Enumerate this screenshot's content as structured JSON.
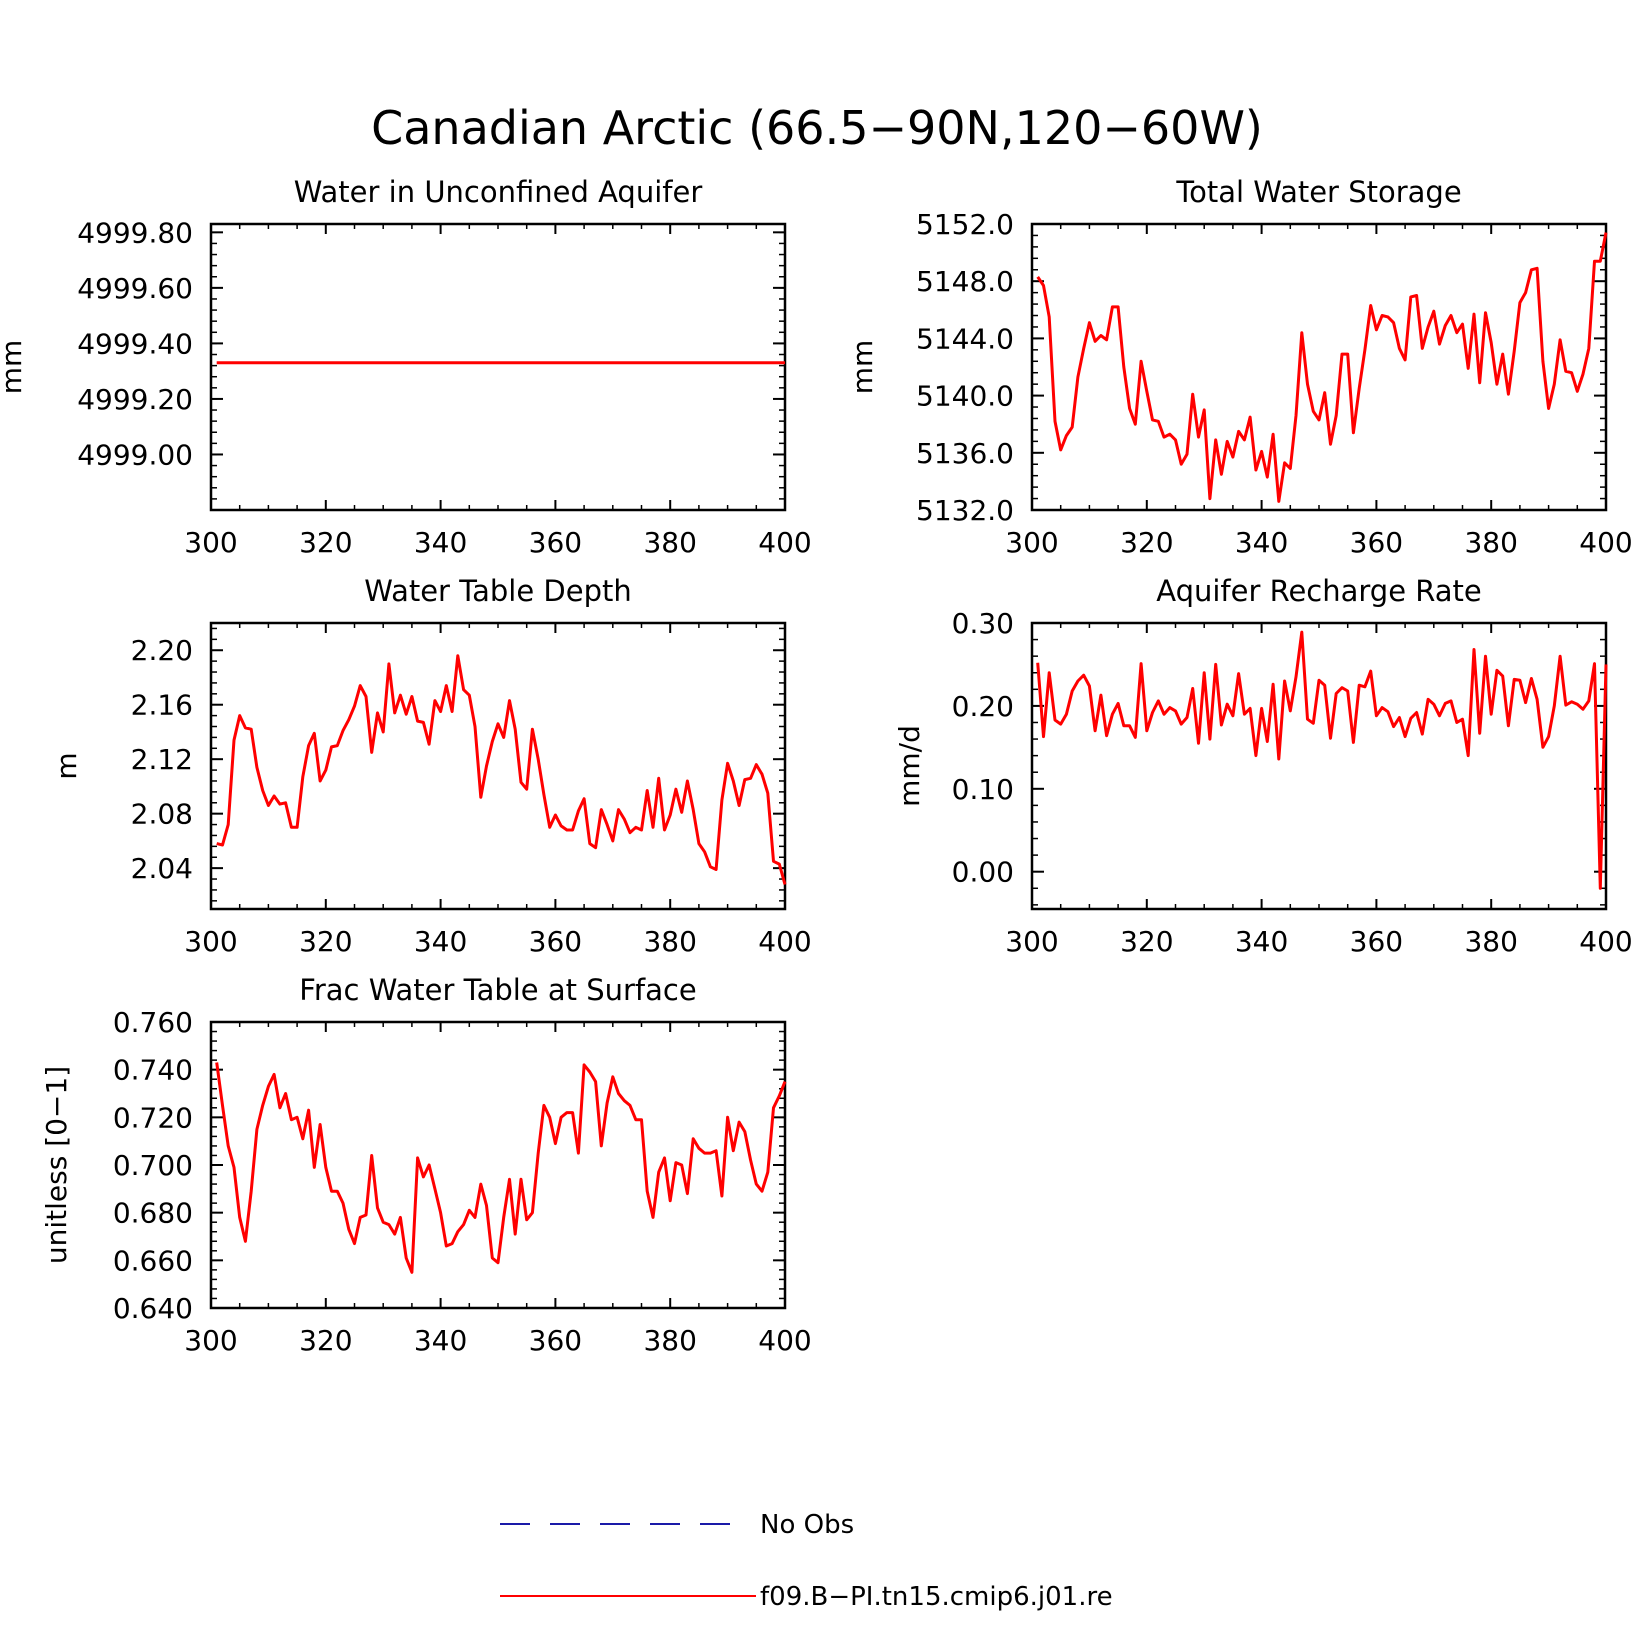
{
  "figure": {
    "title": "Canadian Arctic (66.5−90N,120−60W)"
  },
  "legend": {
    "items": [
      {
        "label": "No Obs",
        "color": "#1a1aa8",
        "dashed": true
      },
      {
        "label": "f09.B−PI.tn15.cmip6.j01.re",
        "color": "#ff0000",
        "dashed": false
      }
    ]
  },
  "colors": {
    "series": "#ff0000",
    "axis": "#000000"
  },
  "chart_data": [
    {
      "type": "line",
      "title": "Water in Unconfined Aquifer",
      "ylabel": "mm",
      "xlim": [
        300,
        400
      ],
      "ylim": [
        4998.8,
        4999.83
      ],
      "xticks": [
        300,
        320,
        340,
        360,
        380,
        400
      ],
      "xtick_labels": [
        "300",
        "320",
        "340",
        "360",
        "380",
        "400"
      ],
      "yticks": [
        4999.0,
        4999.2,
        4999.4,
        4999.6,
        4999.8
      ],
      "ytick_labels": [
        "4999.00",
        "4999.20",
        "4999.40",
        "4999.60",
        "4999.80"
      ],
      "x_start": 301,
      "series": [
        {
          "values": [
            4999.33,
            4999.33,
            4999.33,
            4999.33,
            4999.33,
            4999.33,
            4999.33,
            4999.33,
            4999.33,
            4999.33,
            4999.33
          ]
        }
      ]
    },
    {
      "type": "line",
      "title": "Total Water Storage",
      "ylabel": "mm",
      "xlim": [
        300,
        400
      ],
      "ylim": [
        5132.0,
        5152.0
      ],
      "xticks": [
        300,
        320,
        340,
        360,
        380,
        400
      ],
      "xtick_labels": [
        "300",
        "320",
        "340",
        "360",
        "380",
        "400"
      ],
      "yticks": [
        5132.0,
        5136.0,
        5140.0,
        5144.0,
        5148.0,
        5152.0
      ],
      "ytick_labels": [
        "5132.0",
        "5136.0",
        "5140.0",
        "5144.0",
        "5148.0",
        "5152.0"
      ],
      "x_start": 301,
      "series": [
        {
          "values": [
            5148.3,
            5147.7,
            5145.5,
            5138.2,
            5136.2,
            5137.2,
            5137.8,
            5141.3,
            5143.3,
            5145.1,
            5143.8,
            5144.2,
            5143.9,
            5146.2,
            5146.2,
            5142.0,
            5139.1,
            5138.0,
            5142.4,
            5140.3,
            5138.3,
            5138.2,
            5137.1,
            5137.3,
            5136.9,
            5135.2,
            5135.9,
            5140.1,
            5137.1,
            5139.0,
            5132.8,
            5136.9,
            5134.5,
            5136.8,
            5135.7,
            5137.5,
            5136.9,
            5138.5,
            5134.8,
            5136.1,
            5134.3,
            5137.3,
            5132.6,
            5135.3,
            5134.9,
            5138.6,
            5144.4,
            5140.8,
            5138.9,
            5138.3,
            5140.2,
            5136.6,
            5138.6,
            5142.9,
            5142.9,
            5137.4,
            5140.5,
            5143.2,
            5146.3,
            5144.6,
            5145.6,
            5145.5,
            5145.1,
            5143.3,
            5142.5,
            5146.9,
            5147.0,
            5143.3,
            5144.8,
            5145.9,
            5143.6,
            5144.9,
            5145.6,
            5144.4,
            5145.0,
            5141.9,
            5145.7,
            5140.9,
            5145.8,
            5143.7,
            5140.8,
            5142.9,
            5140.1,
            5143.1,
            5146.5,
            5147.2,
            5148.8,
            5148.9,
            5142.4,
            5139.1,
            5140.8,
            5143.9,
            5141.7,
            5141.6,
            5140.3,
            5141.5,
            5143.3,
            5149.4,
            5149.4,
            5151.4
          ]
        }
      ]
    },
    {
      "type": "line",
      "title": "Water Table Depth",
      "ylabel": "m",
      "xlim": [
        300,
        400
      ],
      "ylim": [
        2.01,
        2.22
      ],
      "xticks": [
        300,
        320,
        340,
        360,
        380,
        400
      ],
      "xtick_labels": [
        "300",
        "320",
        "340",
        "360",
        "380",
        "400"
      ],
      "yticks": [
        2.04,
        2.08,
        2.12,
        2.16,
        2.2
      ],
      "ytick_labels": [
        "2.04",
        "2.08",
        "2.12",
        "2.16",
        "2.20"
      ],
      "x_start": 301,
      "series": [
        {
          "values": [
            2.058,
            2.057,
            2.072,
            2.134,
            2.152,
            2.143,
            2.142,
            2.114,
            2.097,
            2.086,
            2.093,
            2.087,
            2.088,
            2.07,
            2.07,
            2.107,
            2.13,
            2.139,
            2.104,
            2.112,
            2.129,
            2.13,
            2.141,
            2.149,
            2.159,
            2.174,
            2.166,
            2.125,
            2.154,
            2.14,
            2.19,
            2.154,
            2.167,
            2.153,
            2.166,
            2.148,
            2.147,
            2.131,
            2.163,
            2.155,
            2.174,
            2.155,
            2.196,
            2.171,
            2.167,
            2.144,
            2.092,
            2.115,
            2.133,
            2.146,
            2.136,
            2.163,
            2.142,
            2.103,
            2.098,
            2.142,
            2.12,
            2.094,
            2.07,
            2.079,
            2.071,
            2.068,
            2.068,
            2.082,
            2.091,
            2.058,
            2.055,
            2.083,
            2.072,
            2.06,
            2.083,
            2.076,
            2.066,
            2.07,
            2.068,
            2.097,
            2.07,
            2.106,
            2.068,
            2.079,
            2.098,
            2.081,
            2.104,
            2.083,
            2.058,
            2.052,
            2.041,
            2.039,
            2.09,
            2.117,
            2.104,
            2.086,
            2.105,
            2.106,
            2.116,
            2.109,
            2.095,
            2.045,
            2.043,
            2.028
          ]
        }
      ]
    },
    {
      "type": "line",
      "title": "Aquifer Recharge Rate",
      "ylabel": "mm/d",
      "xlim": [
        300,
        400
      ],
      "ylim": [
        -0.045,
        0.3
      ],
      "xticks": [
        300,
        320,
        340,
        360,
        380,
        400
      ],
      "xtick_labels": [
        "300",
        "320",
        "340",
        "360",
        "380",
        "400"
      ],
      "yticks": [
        0.0,
        0.1,
        0.2,
        0.3
      ],
      "ytick_labels": [
        "0.00",
        "0.10",
        "0.20",
        "0.30"
      ],
      "x_start": 301,
      "series": [
        {
          "values": [
            0.252,
            0.163,
            0.24,
            0.183,
            0.178,
            0.19,
            0.218,
            0.23,
            0.237,
            0.224,
            0.17,
            0.213,
            0.164,
            0.19,
            0.203,
            0.176,
            0.176,
            0.162,
            0.251,
            0.17,
            0.192,
            0.206,
            0.19,
            0.198,
            0.194,
            0.178,
            0.186,
            0.221,
            0.155,
            0.24,
            0.16,
            0.25,
            0.177,
            0.202,
            0.188,
            0.239,
            0.19,
            0.197,
            0.14,
            0.197,
            0.157,
            0.226,
            0.136,
            0.23,
            0.194,
            0.235,
            0.289,
            0.184,
            0.179,
            0.231,
            0.225,
            0.161,
            0.215,
            0.222,
            0.218,
            0.156,
            0.225,
            0.223,
            0.242,
            0.188,
            0.198,
            0.193,
            0.175,
            0.186,
            0.163,
            0.185,
            0.192,
            0.166,
            0.208,
            0.202,
            0.188,
            0.203,
            0.206,
            0.18,
            0.184,
            0.14,
            0.268,
            0.167,
            0.26,
            0.19,
            0.243,
            0.236,
            0.176,
            0.232,
            0.231,
            0.204,
            0.233,
            0.208,
            0.15,
            0.163,
            0.2,
            0.26,
            0.201,
            0.205,
            0.202,
            0.196,
            0.206,
            0.251,
            -0.02,
            0.25
          ]
        }
      ]
    },
    {
      "type": "line",
      "title": "Frac Water Table at Surface",
      "ylabel": "unitless [0−1]",
      "xlim": [
        300,
        400
      ],
      "ylim": [
        0.64,
        0.76
      ],
      "xticks": [
        300,
        320,
        340,
        360,
        380,
        400
      ],
      "xtick_labels": [
        "300",
        "320",
        "340",
        "360",
        "380",
        "400"
      ],
      "yticks": [
        0.64,
        0.66,
        0.68,
        0.7,
        0.72,
        0.74,
        0.76
      ],
      "ytick_labels": [
        "0.640",
        "0.660",
        "0.680",
        "0.700",
        "0.720",
        "0.740",
        "0.760"
      ],
      "x_start": 301,
      "series": [
        {
          "values": [
            0.743,
            0.725,
            0.708,
            0.699,
            0.678,
            0.668,
            0.689,
            0.715,
            0.725,
            0.733,
            0.738,
            0.724,
            0.73,
            0.719,
            0.72,
            0.711,
            0.723,
            0.699,
            0.717,
            0.699,
            0.689,
            0.689,
            0.684,
            0.673,
            0.667,
            0.678,
            0.679,
            0.704,
            0.682,
            0.676,
            0.675,
            0.671,
            0.678,
            0.661,
            0.655,
            0.703,
            0.695,
            0.7,
            0.69,
            0.68,
            0.666,
            0.667,
            0.672,
            0.675,
            0.681,
            0.678,
            0.692,
            0.683,
            0.661,
            0.659,
            0.678,
            0.694,
            0.671,
            0.694,
            0.677,
            0.68,
            0.705,
            0.725,
            0.72,
            0.709,
            0.72,
            0.722,
            0.722,
            0.705,
            0.742,
            0.739,
            0.735,
            0.708,
            0.726,
            0.737,
            0.73,
            0.727,
            0.725,
            0.719,
            0.719,
            0.689,
            0.678,
            0.697,
            0.703,
            0.685,
            0.701,
            0.7,
            0.688,
            0.711,
            0.707,
            0.705,
            0.705,
            0.706,
            0.687,
            0.72,
            0.706,
            0.718,
            0.714,
            0.702,
            0.692,
            0.689,
            0.697,
            0.724,
            0.729,
            0.735
          ]
        }
      ]
    }
  ]
}
